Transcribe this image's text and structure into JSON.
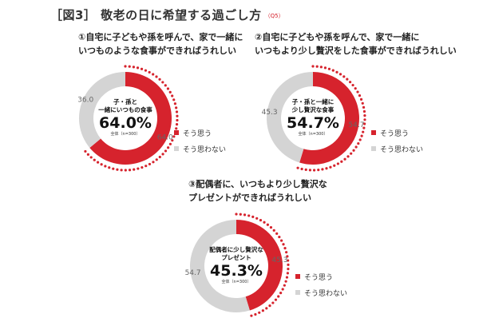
{
  "title": "［図3］ 敬老の日に希望する過ごし方",
  "title_tag": "（Q5）",
  "colors": {
    "yes": "#d6232d",
    "no": "#d4d4d4",
    "dots": "#d6232d"
  },
  "chart_data": [
    {
      "type": "pie",
      "heading_lines": [
        "①自宅に子どもや孫を呼んで、家で一緒に",
        "いつものような食事ができればうれしい"
      ],
      "center_label_lines": [
        "子・孫と",
        "一緒にいつもの食事"
      ],
      "center_value": "64.0%",
      "base_note": "全体（n=300）",
      "categories": [
        "そう思う",
        "そう思わない"
      ],
      "values": [
        64.0,
        36.0
      ],
      "value_labels": [
        "64.0",
        "36.0"
      ]
    },
    {
      "type": "pie",
      "heading_lines": [
        "②自宅に子どもや孫を呼んで、家で一緒に",
        "いつもより少し贅沢をした食事ができればうれしい"
      ],
      "center_label_lines": [
        "子・孫と一緒に",
        "少し贅沢な食事"
      ],
      "center_value": "54.7%",
      "base_note": "全体（n=300）",
      "categories": [
        "そう思う",
        "そう思わない"
      ],
      "values": [
        54.7,
        45.3
      ],
      "value_labels": [
        "54.7",
        "45.3"
      ]
    },
    {
      "type": "pie",
      "heading_lines": [
        "③配偶者に、いつもより少し贅沢な",
        "プレゼントができればうれしい"
      ],
      "center_label_lines": [
        "配偶者に少し贅沢な",
        "プレゼント"
      ],
      "center_value": "45.3%",
      "base_note": "全体（n=300）",
      "categories": [
        "そう思う",
        "そう思わない"
      ],
      "values": [
        45.3,
        54.7
      ],
      "value_labels": [
        "45.3",
        "54.7"
      ]
    }
  ]
}
